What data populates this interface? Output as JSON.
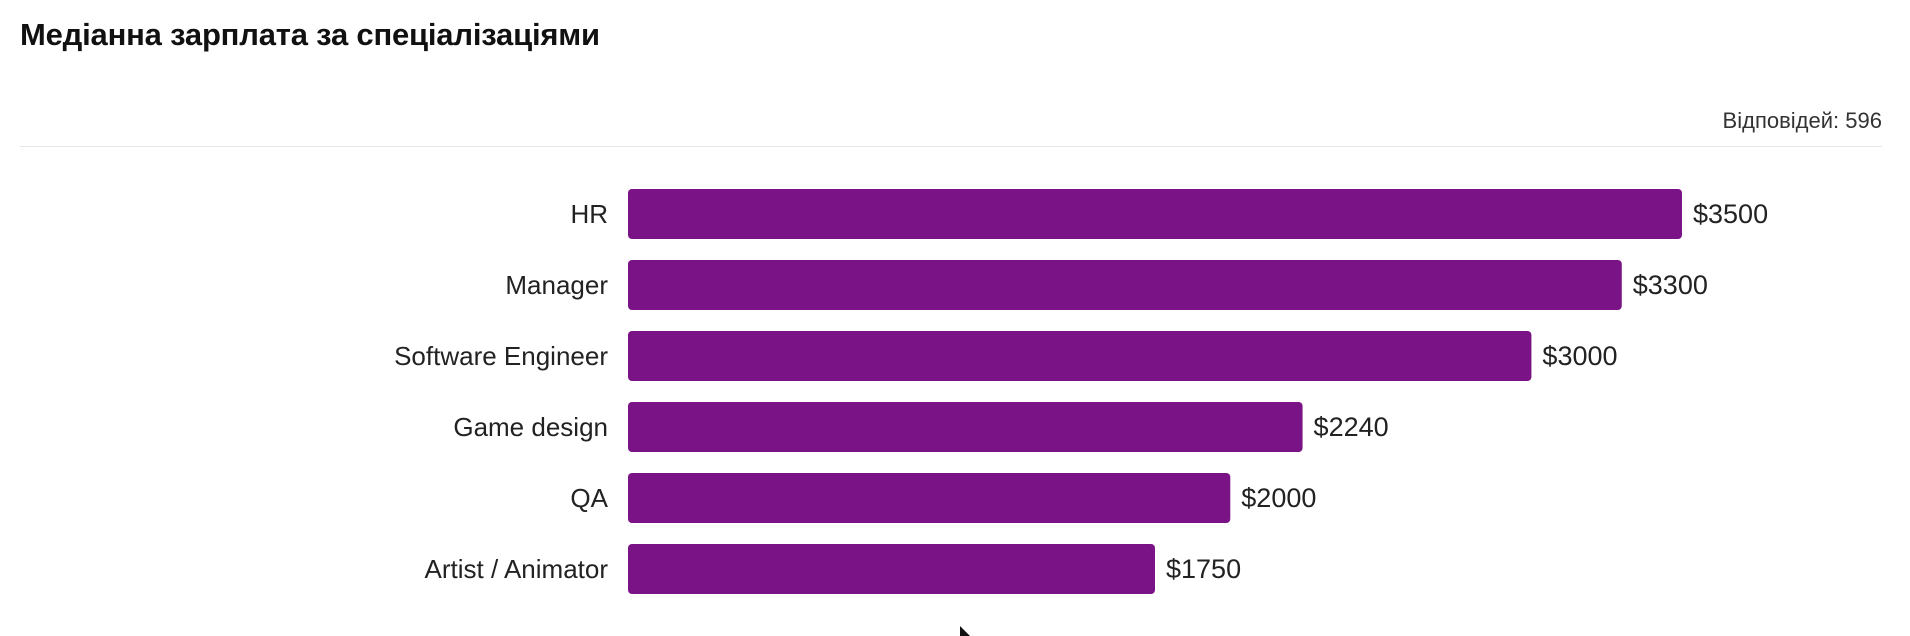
{
  "title": "Медіанна зарплата за спеціалізаціями",
  "responses": {
    "label": "Відповідей:",
    "count": "596"
  },
  "colors": {
    "bar": "#7a1385",
    "text": "#222222",
    "divider": "#e6e6e6"
  },
  "chart_data": {
    "type": "bar",
    "orientation": "horizontal",
    "title": "Медіанна зарплата за спеціалізаціями",
    "categories": [
      "HR",
      "Manager",
      "Software Engineer",
      "Game design",
      "QA",
      "Artist / Animator"
    ],
    "values": [
      3500,
      3300,
      3000,
      2240,
      2000,
      1750
    ],
    "value_labels": [
      "$3500",
      "$3300",
      "$3000",
      "$2240",
      "$2000",
      "$1750"
    ],
    "xlim": [
      0,
      3500
    ],
    "grid": false,
    "legend": "none"
  }
}
